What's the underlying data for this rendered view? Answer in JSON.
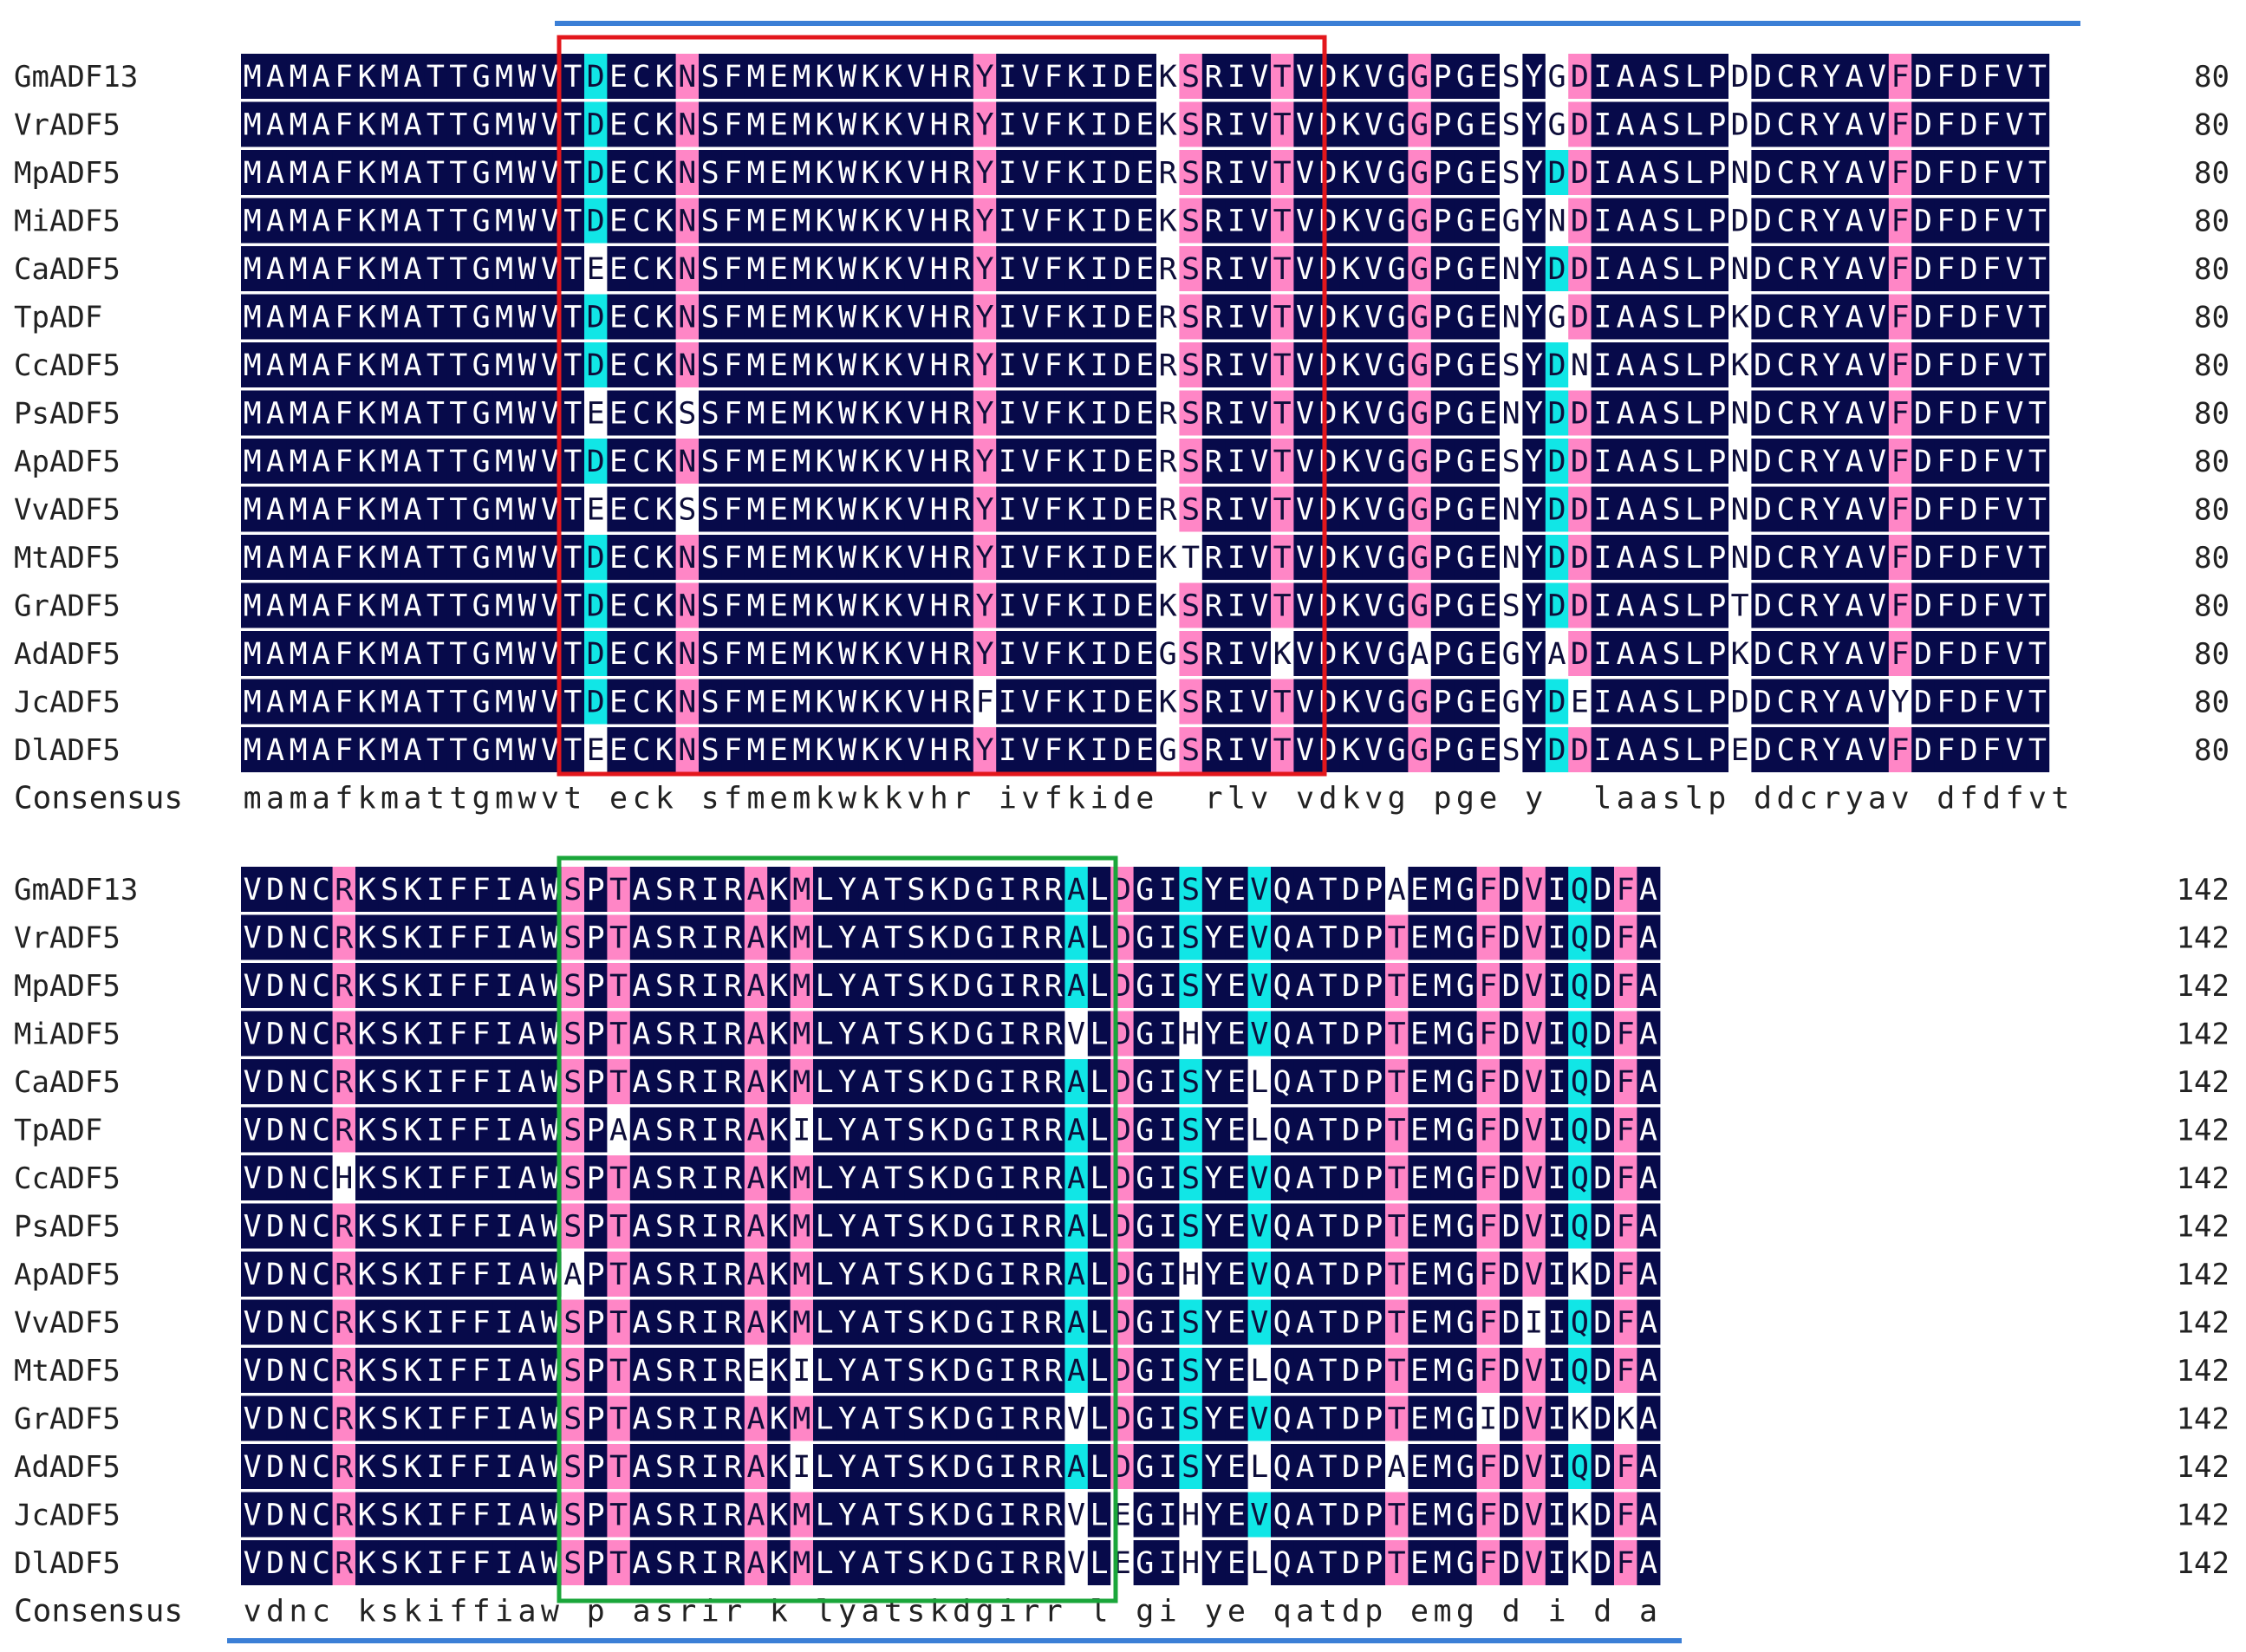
{
  "colors": {
    "identical": "#070a4a",
    "identical_text": "#ffffff",
    "high": "#ff86c6",
    "medium": "#11e6e6",
    "low": "#ffffff",
    "low_text": "#0d0d3a",
    "label_text": "#222222",
    "box_block1": "#e3171c",
    "box_block2": "#1aa63a",
    "line": "#3b7fd6"
  },
  "consensus_label": "Consensus",
  "blocks": [
    {
      "end_position": "80",
      "consensus": "mamafkmattgmwvt eck sfmemkwkkvhr ivfkide  rlv vdkvg pge y  laaslp ddcryav dfdfvt",
      "rows": [
        {
          "name": "GmADF13",
          "seq": "MAMAFKMATTGMWVTDECKNSFMEMKWKKVHRYIVFKIDEKSRIVTVDKVGGPGESYGDIAASLPDDCRYAVFDFDFVT"
        },
        {
          "name": "VrADF5",
          "seq": "MAMAFKMATTGMWVTDECKNSFMEMKWKKVHRYIVFKIDEKSRIVTVDKVGGPGESYGDIAASLPDDCRYAVFDFDFVT"
        },
        {
          "name": "MpADF5",
          "seq": "MAMAFKMATTGMWVTDECKNSFMEMKWKKVHRYIVFKIDERSRIVTVDKVGGPGESYDDIAASLPNDCRYAVFDFDFVT"
        },
        {
          "name": "MiADF5",
          "seq": "MAMAFKMATTGMWVTDECKNSFMEMKWKKVHRYIVFKIDEKSRIVTVDKVGGPGEGYNDIAASLPDDCRYAVFDFDFVT"
        },
        {
          "name": "CaADF5",
          "seq": "MAMAFKMATTGMWVTEECKNSFMEMKWKKVHRYIVFKIDERSRIVTVDKVGGPGENYDDIAASLPNDCRYAVFDFDFVT"
        },
        {
          "name": "TpADF",
          "seq": "MAMAFKMATTGMWVTDECKNSFMEMKWKKVHRYIVFKIDERSRIVTVDKVGGPGENYGDIAASLPKDCRYAVFDFDFVT"
        },
        {
          "name": "CcADF5",
          "seq": "MAMAFKMATTGMWVTDECKNSFMEMKWKKVHRYIVFKIDERSRIVTVDKVGGPGESYDNIAASLPKDCRYAVFDFDFVT"
        },
        {
          "name": "PsADF5",
          "seq": "MAMAFKMATTGMWVTEECKSSFMEMKWKKVHRYIVFKIDERSRIVTVDKVGGPGENYDDIAASLPNDCRYAVFDFDFVT"
        },
        {
          "name": "ApADF5",
          "seq": "MAMAFKMATTGMWVTDECKNSFMEMKWKKVHRYIVFKIDERSRIVTVDKVGGPGESYDDIAASLPNDCRYAVFDFDFVT"
        },
        {
          "name": "VvADF5",
          "seq": "MAMAFKMATTGMWVTEECKSSFMEMKWKKVHRYIVFKIDERSRIVTVDKVGGPGENYDDIAASLPNDCRYAVFDFDFVT"
        },
        {
          "name": "MtADF5",
          "seq": "MAMAFKMATTGMWVTDECKNSFMEMKWKKVHRYIVFKIDEKTRIVTVDKVGGPGENYDDIAASLPNDCRYAVFDFDFVT"
        },
        {
          "name": "GrADF5",
          "seq": "MAMAFKMATTGMWVTDECKNSFMEMKWKKVHRYIVFKIDEKSRIVTVDKVGGPGESYDDIAASLPTDCRYAVFDFDFVT"
        },
        {
          "name": "AdADF5",
          "seq": "MAMAFKMATTGMWVTDECKNSFMEMKWKKVHRYIVFKIDEGSRIVKVDKVGAPGEGYADIAASLPKDCRYAVFDFDFVT"
        },
        {
          "name": "JcADF5",
          "seq": "MAMAFKMATTGMWVTDECKNSFMEMKWKKVHRFIVFKIDEKSRIVTVDKVGGPGEGYDEIAASLPDDCRYAVYDFDFVT"
        },
        {
          "name": "DlADF5",
          "seq": "MAMAFKMATTGMWVTEECKNSFMEMKWKKVHRYIVFKIDEGSRIVTVDKVGGPGESYDDIAASLPEDCRYAVFDFDFVT"
        }
      ]
    },
    {
      "end_position": "142",
      "consensus": "vdnc kskiffiaw p asrir k lyatskdgirr l gi ye qatdp emg d i d a",
      "rows": [
        {
          "name": "GmADF13",
          "seq": "VDNCRKSKIFFIAWSPTASRIRAKMLYATSKDGIRRALDGISYEVQATDPAEMGFDVIQDFA"
        },
        {
          "name": "VrADF5",
          "seq": "VDNCRKSKIFFIAWSPTASRIRAKMLYATSKDGIRRALDGISYEVQATDPTEMGFDVIQDFA"
        },
        {
          "name": "MpADF5",
          "seq": "VDNCRKSKIFFIAWSPTASRIRAKMLYATSKDGIRRALDGISYEVQATDPTEMGFDVIQDFA"
        },
        {
          "name": "MiADF5",
          "seq": "VDNCRKSKIFFIAWSPTASRIRAKMLYATSKDGIRRVLDGIHYEVQATDPTEMGFDVIQDFA"
        },
        {
          "name": "CaADF5",
          "seq": "VDNCRKSKIFFIAWSPTASRIRAKMLYATSKDGIRRALDGISYELQATDPTEMGFDVIQDFA"
        },
        {
          "name": "TpADF",
          "seq": "VDNCRKSKIFFIAWSPAASRIRAKILYATSKDGIRRALDGISYELQATDPTEMGFDVIQDFA"
        },
        {
          "name": "CcADF5",
          "seq": "VDNCHKSKIFFIAWSPTASRIRAKMLYATSKDGIRRALDGISYEVQATDPTEMGFDVIQDFA"
        },
        {
          "name": "PsADF5",
          "seq": "VDNCRKSKIFFIAWSPTASRIRAKMLYATSKDGIRRALDGISYEVQATDPTEMGFDVIQDFA"
        },
        {
          "name": "ApADF5",
          "seq": "VDNCRKSKIFFIAWAPTASRIRAKMLYATSKDGIRRALDGIHYEVQATDPTEMGFDVIKDFA"
        },
        {
          "name": "VvADF5",
          "seq": "VDNCRKSKIFFIAWSPTASRIRAKMLYATSKDGIRRALDGISYEVQATDPTEMGFDIIQDFA"
        },
        {
          "name": "MtADF5",
          "seq": "VDNCRKSKIFFIAWSPTASRIREKILYATSKDGIRRALDGISYELQATDPTEMGFDVIQDFA"
        },
        {
          "name": "GrADF5",
          "seq": "VDNCRKSKIFFIAWSPTASRIRAKMLYATSKDGIRRVLDGISYEVQATDPTEMGIDVIKDKA"
        },
        {
          "name": "AdADF5",
          "seq": "VDNCRKSKIFFIAWSPTASRIRAKILYATSKDGIRRALDGISYELQATDPAEMGFDVIQDFA"
        },
        {
          "name": "JcADF5",
          "seq": "VDNCRKSKIFFIAWSPTASRIRAKMLYATSKDGIRRVLEGIHYEVQATDPTEMGFDVIKDFA"
        },
        {
          "name": "DlADF5",
          "seq": "VDNCRKSKIFFIAWSPTASRIRAKMLYATSKDGIRRVLEGIHYELQATDPTEMGFDVIKDFA"
        }
      ]
    }
  ]
}
